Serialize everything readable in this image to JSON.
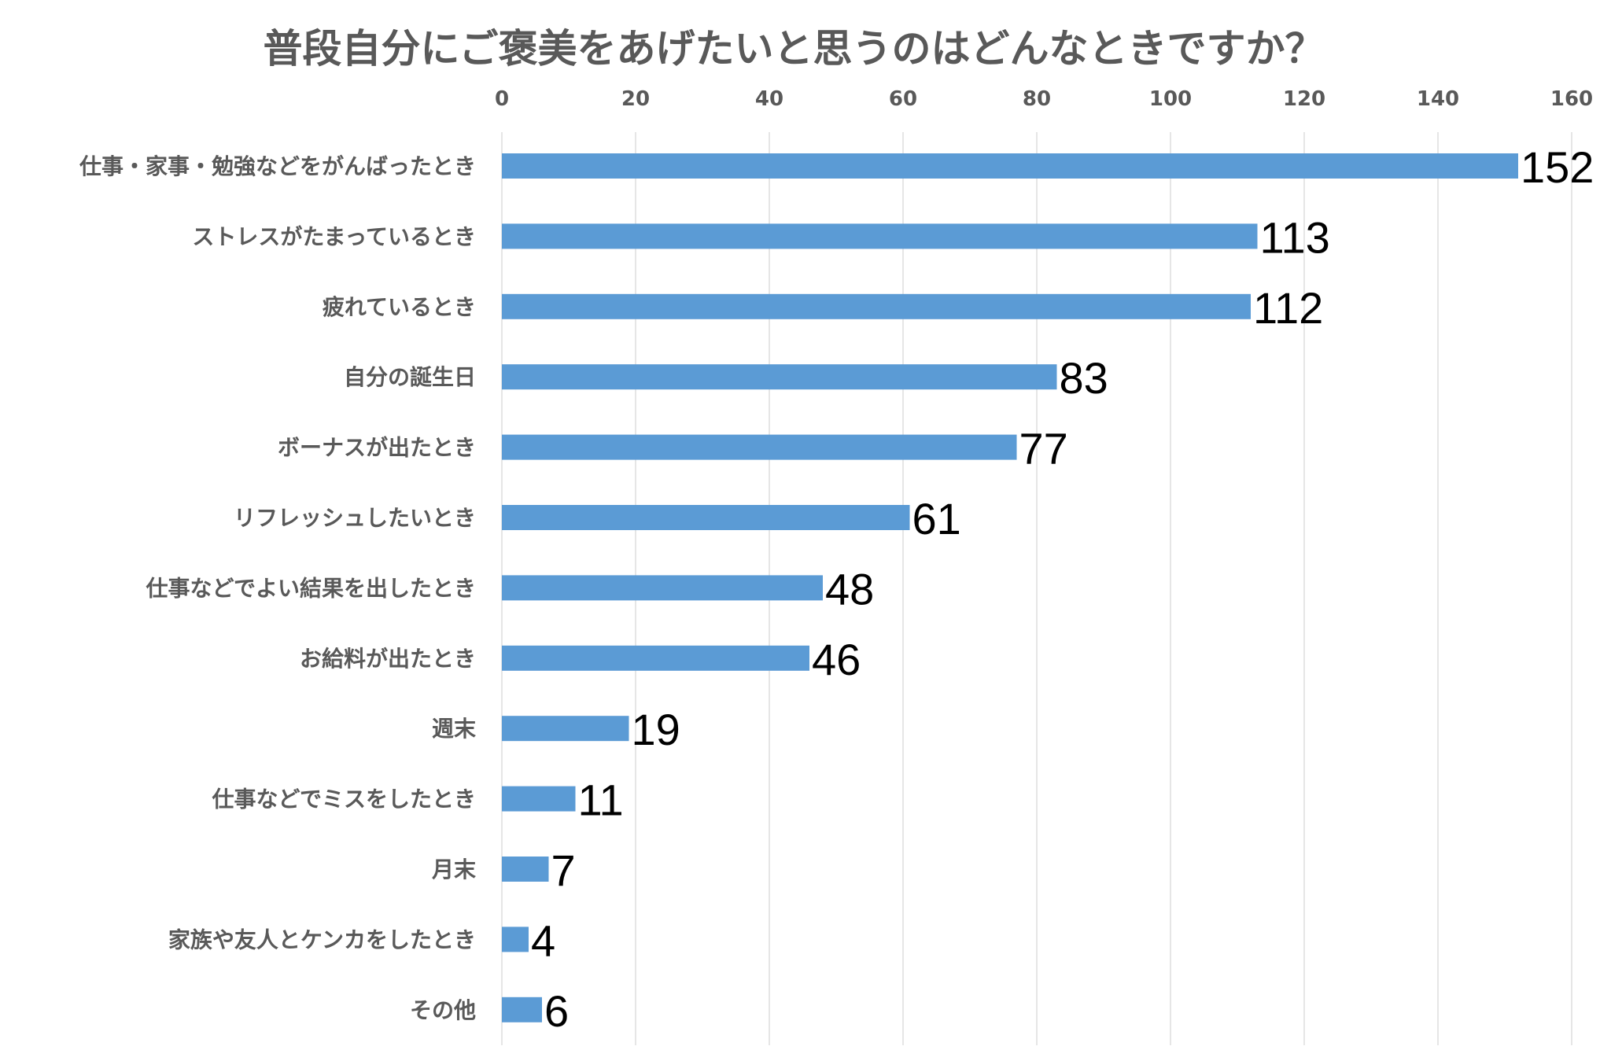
{
  "chart_data": {
    "type": "bar",
    "orientation": "horizontal",
    "title": "普段自分にご褒美をあげたいと思うのはどんなときですか？",
    "xlabel": "",
    "ylabel": "",
    "xlim": [
      0,
      160
    ],
    "x_ticks": [
      0,
      20,
      40,
      60,
      80,
      100,
      120,
      140,
      160
    ],
    "x_axis_position": "top",
    "grid": true,
    "categories": [
      "仕事・家事・勉強などをがんばったとき",
      "ストレスがたまっているとき",
      "疲れているとき",
      "自分の誕生日",
      "ボーナスが出たとき",
      "リフレッシュしたいとき",
      "仕事などでよい結果を出したとき",
      "お給料が出たとき",
      "週末",
      "仕事などでミスをしたとき",
      "月末",
      "家族や友人とケンカをしたとき",
      "その他"
    ],
    "values": [
      152,
      113,
      112,
      83,
      77,
      61,
      48,
      46,
      19,
      11,
      7,
      4,
      6
    ],
    "bar_color": "#5B9BD5",
    "data_labels": true
  }
}
